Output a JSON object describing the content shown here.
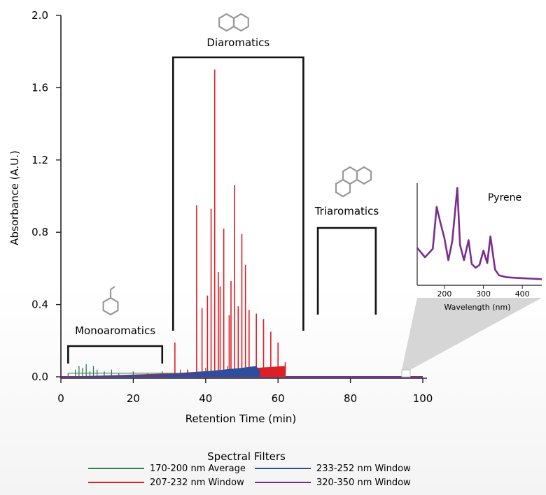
{
  "chart_data": {
    "type": "line",
    "title": "",
    "xlabel": "Retention Time (min)",
    "ylabel": "Absorbance (A.U.)",
    "xlim": [
      0,
      100
    ],
    "ylim": [
      0,
      2.0
    ],
    "x_ticks": [
      "0",
      "20",
      "40",
      "60",
      "80",
      "100"
    ],
    "y_ticks": [
      "0.0",
      "0.4",
      "0.8",
      "1.2",
      "1.6",
      "2.0"
    ],
    "legend_title": "Spectral Filters",
    "legend_position": "bottom",
    "series": [
      {
        "name": "170-200 nm Average",
        "color": "#2e7d4f",
        "x": [
          2,
          4,
          5,
          6,
          7,
          8,
          9,
          10,
          12,
          14,
          16,
          20,
          24,
          28,
          33,
          40,
          46,
          52,
          58,
          62
        ],
        "values": [
          0.02,
          0.04,
          0.06,
          0.05,
          0.07,
          0.03,
          0.06,
          0.04,
          0.03,
          0.04,
          0.02,
          0.03,
          0.02,
          0.03,
          0.04,
          0.05,
          0.06,
          0.04,
          0.05,
          0.03
        ]
      },
      {
        "name": "207-232 nm Window",
        "color": "#dd1f26",
        "x": [
          31.5,
          35,
          37.5,
          39,
          40.5,
          41.5,
          42.5,
          43.5,
          44,
          45,
          46.5,
          47,
          48,
          49,
          50,
          51,
          52,
          54,
          56,
          58,
          60,
          62
        ],
        "values": [
          0.19,
          0.04,
          0.95,
          0.38,
          0.45,
          0.93,
          1.7,
          0.58,
          0.5,
          0.82,
          0.34,
          0.53,
          1.06,
          0.39,
          0.79,
          0.62,
          0.37,
          0.35,
          0.32,
          0.25,
          0.19,
          0.08
        ]
      },
      {
        "name": "233-252 nm Window",
        "color": "#2c4e9c",
        "x": [
          0,
          10,
          20,
          30,
          40,
          45,
          50,
          54,
          55
        ],
        "values": [
          0.0,
          0.005,
          0.01,
          0.015,
          0.03,
          0.04,
          0.05,
          0.06,
          0.03
        ]
      },
      {
        "name": "320-350 nm Window",
        "color": "#7b2d8e",
        "x": [
          0,
          50,
          100
        ],
        "values": [
          0.0,
          0.0,
          0.0
        ]
      }
    ],
    "annotations": [
      {
        "text": "Monoaromatics",
        "x_range": [
          2,
          28
        ]
      },
      {
        "text": "Diaromatics",
        "x_range": [
          31,
          67
        ]
      },
      {
        "text": "Triaromatics",
        "x_range": [
          71,
          87
        ]
      }
    ],
    "inset": {
      "title": "Pyrene",
      "xlabel": "Wavelength (nm)",
      "x_ticks": [
        "200",
        "300",
        "400"
      ],
      "xlim": [
        130,
        450
      ],
      "ylim": [
        0,
        1
      ],
      "color": "#7b2d8e",
      "x": [
        130,
        150,
        170,
        180,
        188,
        200,
        210,
        220,
        233,
        240,
        250,
        262,
        270,
        280,
        290,
        300,
        310,
        318,
        330,
        340,
        360,
        400,
        450
      ],
      "values": [
        0.35,
        0.25,
        0.34,
        0.78,
        0.64,
        0.45,
        0.22,
        0.42,
        0.98,
        0.38,
        0.22,
        0.43,
        0.18,
        0.14,
        0.17,
        0.32,
        0.19,
        0.47,
        0.12,
        0.06,
        0.04,
        0.03,
        0.02
      ]
    }
  }
}
